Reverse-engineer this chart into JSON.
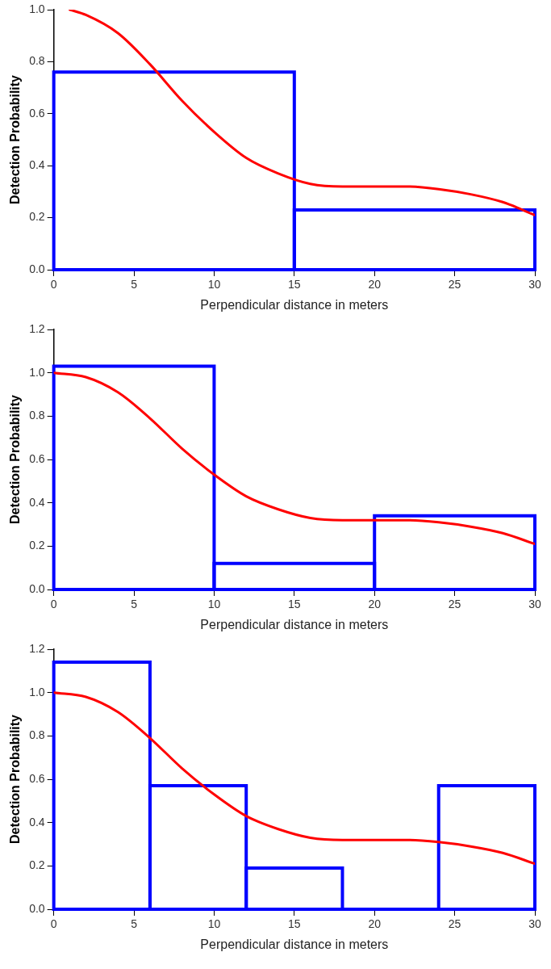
{
  "chart_data": [
    {
      "type": "histogram",
      "xlabel": "Perpendicular distance in meters",
      "ylabel": "Detection Probability",
      "xlim": [
        0,
        30
      ],
      "xticks": [
        0,
        5,
        10,
        15,
        20,
        25,
        30
      ],
      "ylim": [
        0,
        1
      ],
      "yticks": [
        {
          "value": 0,
          "label": "0.0"
        },
        {
          "value": 0.2,
          "label": "0.2"
        },
        {
          "value": 0.4,
          "label": "0.4"
        },
        {
          "value": 0.6,
          "label": "0.6"
        },
        {
          "value": 0.8,
          "label": "0.8"
        },
        {
          "value": 1,
          "label": "1.0"
        }
      ],
      "grid": false,
      "legend": false,
      "series": [
        {
          "type": "histogram",
          "color": "#0000ff",
          "bins": [
            0,
            15,
            30
          ],
          "values": [
            0.76,
            0.23
          ]
        },
        {
          "type": "line",
          "color": "#ff0000",
          "x": [
            1,
            2,
            4,
            6,
            8,
            10,
            12,
            14,
            16,
            18,
            20,
            22,
            24,
            26,
            28,
            30
          ],
          "values": [
            1.0,
            0.98,
            0.91,
            0.79,
            0.65,
            0.53,
            0.43,
            0.37,
            0.33,
            0.32,
            0.32,
            0.32,
            0.31,
            0.29,
            0.26,
            0.21
          ]
        }
      ]
    },
    {
      "type": "histogram",
      "xlabel": "Perpendicular distance in meters",
      "ylabel": "Detection Probability",
      "xlim": [
        0,
        30
      ],
      "xticks": [
        0,
        5,
        10,
        15,
        20,
        25,
        30
      ],
      "ylim": [
        0,
        1.2
      ],
      "yticks": [
        {
          "value": 0,
          "label": "0.0"
        },
        {
          "value": 0.2,
          "label": "0.2"
        },
        {
          "value": 0.4,
          "label": "0.4"
        },
        {
          "value": 0.6,
          "label": "0.6"
        },
        {
          "value": 0.8,
          "label": "0.8"
        },
        {
          "value": 1,
          "label": "1.0"
        },
        {
          "value": 1.2,
          "label": "1.2"
        }
      ],
      "grid": false,
      "legend": false,
      "series": [
        {
          "type": "histogram",
          "color": "#0000ff",
          "bins": [
            0,
            10,
            20,
            30
          ],
          "values": [
            1.03,
            0.12,
            0.34
          ]
        },
        {
          "type": "line",
          "color": "#ff0000",
          "x": [
            0,
            2,
            4,
            6,
            8,
            10,
            12,
            14,
            16,
            18,
            20,
            22,
            24,
            26,
            28,
            30
          ],
          "values": [
            1.0,
            0.98,
            0.91,
            0.79,
            0.65,
            0.53,
            0.43,
            0.37,
            0.33,
            0.32,
            0.32,
            0.32,
            0.31,
            0.29,
            0.26,
            0.21
          ]
        }
      ]
    },
    {
      "type": "histogram",
      "xlabel": "Perpendicular distance in meters",
      "ylabel": "Detection Probability",
      "xlim": [
        0,
        30
      ],
      "xticks": [
        0,
        5,
        10,
        15,
        20,
        25,
        30
      ],
      "ylim": [
        0,
        1.2
      ],
      "yticks": [
        {
          "value": 0,
          "label": "0.0"
        },
        {
          "value": 0.2,
          "label": "0.2"
        },
        {
          "value": 0.4,
          "label": "0.4"
        },
        {
          "value": 0.6,
          "label": "0.6"
        },
        {
          "value": 0.8,
          "label": "0.8"
        },
        {
          "value": 1,
          "label": "1.0"
        },
        {
          "value": 1.2,
          "label": "1.2"
        }
      ],
      "grid": false,
      "legend": false,
      "series": [
        {
          "type": "histogram",
          "color": "#0000ff",
          "bins": [
            0,
            6,
            12,
            18,
            24,
            30
          ],
          "values": [
            1.14,
            0.57,
            0.19,
            0.0,
            0.57
          ]
        },
        {
          "type": "line",
          "color": "#ff0000",
          "x": [
            0,
            2,
            4,
            6,
            8,
            10,
            12,
            14,
            16,
            18,
            20,
            22,
            24,
            26,
            28,
            30
          ],
          "values": [
            1.0,
            0.98,
            0.91,
            0.79,
            0.65,
            0.53,
            0.43,
            0.37,
            0.33,
            0.32,
            0.32,
            0.32,
            0.31,
            0.29,
            0.26,
            0.21
          ]
        }
      ]
    }
  ]
}
